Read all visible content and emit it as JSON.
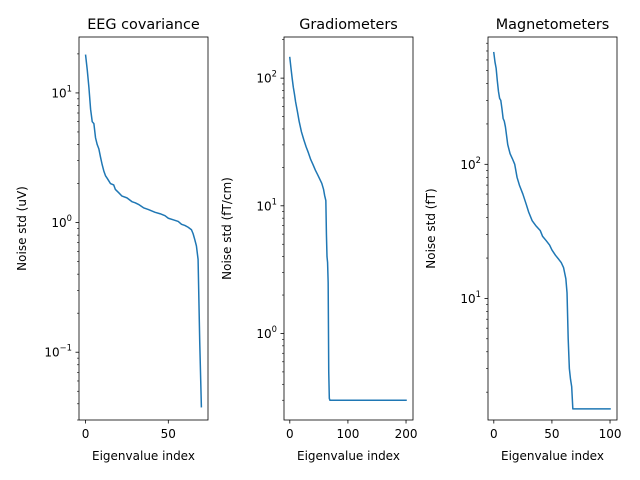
{
  "chart_data": [
    {
      "type": "line",
      "title": "EEG covariance",
      "xlabel": "Eigenvalue index",
      "ylabel": "Noise std (uV)",
      "yscale": "log",
      "xlim": [
        -4,
        74
      ],
      "ylim": [
        0.03,
        27
      ],
      "xticks": [
        0,
        50
      ],
      "yticks": [
        0.1,
        1,
        10
      ],
      "ytick_labels": [
        {
          "base": "10",
          "exp": "−1"
        },
        {
          "base": "10",
          "exp": "0"
        },
        {
          "base": "10",
          "exp": "1"
        }
      ],
      "color": "#1f77b4",
      "series": [
        {
          "x": [
            0,
            1,
            2,
            3,
            4,
            5,
            6,
            7,
            8,
            9,
            10,
            11,
            12,
            13,
            14,
            15,
            17,
            18,
            20,
            22,
            25,
            28,
            30,
            32,
            35,
            38,
            40,
            42,
            45,
            48,
            50,
            53,
            56,
            58,
            60,
            62,
            63,
            64,
            65,
            66,
            67,
            68,
            69,
            70
          ],
          "y": [
            19.5,
            15,
            11,
            7.5,
            6.0,
            5.8,
            4.5,
            4.0,
            3.7,
            3.2,
            2.8,
            2.5,
            2.3,
            2.2,
            2.1,
            2.0,
            1.95,
            1.8,
            1.7,
            1.6,
            1.55,
            1.45,
            1.42,
            1.38,
            1.3,
            1.26,
            1.23,
            1.2,
            1.17,
            1.13,
            1.08,
            1.05,
            1.02,
            0.97,
            0.95,
            0.92,
            0.9,
            0.88,
            0.82,
            0.74,
            0.66,
            0.52,
            0.12,
            0.038
          ]
        }
      ]
    },
    {
      "type": "line",
      "title": "Gradiometers",
      "xlabel": "Eigenvalue index",
      "ylabel": "Noise std (fT/cm)",
      "yscale": "log",
      "xlim": [
        -10,
        212
      ],
      "ylim": [
        0.21,
        210
      ],
      "xticks": [
        0,
        100,
        200
      ],
      "yticks": [
        1,
        10,
        100
      ],
      "ytick_labels": [
        {
          "base": "10",
          "exp": "0"
        },
        {
          "base": "10",
          "exp": "1"
        },
        {
          "base": "10",
          "exp": "2"
        }
      ],
      "color": "#1f77b4",
      "series": [
        {
          "x": [
            0,
            2,
            4,
            6,
            8,
            10,
            13,
            16,
            20,
            24,
            28,
            32,
            36,
            40,
            44,
            48,
            52,
            55,
            58,
            60,
            62,
            63,
            64,
            65,
            66,
            67,
            68,
            69,
            70,
            80,
            100,
            150,
            200
          ],
          "y": [
            145,
            120,
            100,
            85,
            75,
            65,
            55,
            46,
            38,
            33,
            29,
            26,
            23,
            21,
            19,
            17.5,
            16,
            15,
            13.5,
            12,
            11,
            6,
            4,
            3.6,
            2.5,
            0.5,
            0.31,
            0.3,
            0.3,
            0.3,
            0.3,
            0.3,
            0.3
          ]
        }
      ]
    },
    {
      "type": "line",
      "title": "Magnetometers",
      "xlabel": "Eigenvalue index",
      "ylabel": "Noise std (fT)",
      "yscale": "log",
      "xlim": [
        -5,
        106
      ],
      "ylim": [
        1.24,
        890
      ],
      "xticks": [
        0,
        50,
        100
      ],
      "yticks": [
        10,
        100
      ],
      "ytick_labels": [
        {
          "base": "10",
          "exp": "1"
        },
        {
          "base": "10",
          "exp": "2"
        }
      ],
      "color": "#1f77b4",
      "series": [
        {
          "x": [
            0,
            1,
            2,
            3,
            4,
            5,
            6,
            7,
            8,
            9,
            10,
            12,
            14,
            16,
            18,
            20,
            22,
            25,
            28,
            30,
            33,
            36,
            40,
            42,
            45,
            48,
            50,
            53,
            56,
            58,
            60,
            62,
            63,
            64,
            65,
            66,
            67,
            68,
            69,
            70,
            80,
            100
          ],
          "y": [
            680,
            580,
            520,
            420,
            350,
            310,
            300,
            260,
            220,
            210,
            190,
            140,
            120,
            110,
            100,
            80,
            70,
            60,
            50,
            44,
            38,
            35,
            32,
            29,
            27,
            25,
            23,
            21,
            19.5,
            18.5,
            17,
            14,
            11,
            5,
            3,
            2.5,
            2.2,
            1.5,
            1.5,
            1.5,
            1.5,
            1.5
          ]
        }
      ]
    }
  ]
}
